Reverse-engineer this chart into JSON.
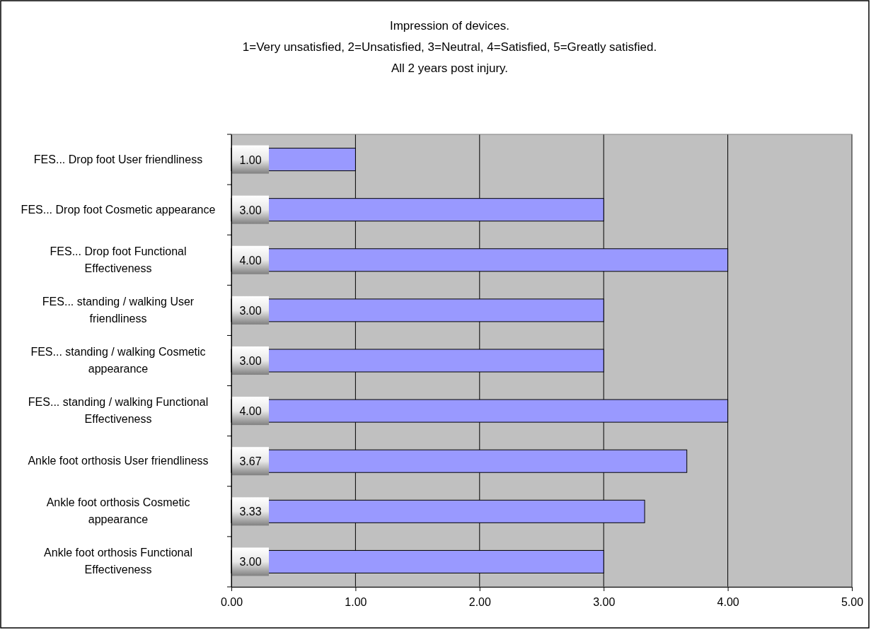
{
  "chart_data": {
    "type": "bar",
    "orientation": "horizontal",
    "title": "Impression of devices.",
    "subtitle": "1=Very unsatisfied, 2=Unsatisfied, 3=Neutral, 4=Satisfied, 5=Greatly satisfied.\nAll 2 years post injury.",
    "categories": [
      "FES... Drop foot User friendliness",
      "FES... Drop foot Cosmetic appearance",
      "FES... Drop foot Functional Effectiveness",
      "FES... standing / walking User friendliness",
      "FES... standing / walking Cosmetic appearance",
      "FES... standing / walking Functional Effectiveness",
      "Ankle foot orthosis User friendliness",
      "Ankle foot orthosis Cosmetic appearance",
      "Ankle foot orthosis Functional Effectiveness"
    ],
    "values": [
      1.0,
      3.0,
      4.0,
      3.0,
      3.0,
      4.0,
      3.67,
      3.33,
      3.0
    ],
    "value_labels": [
      "1.00",
      "3.00",
      "4.00",
      "3.00",
      "3.00",
      "4.00",
      "3.67",
      "3.33",
      "3.00"
    ],
    "color": "#9999ff",
    "xlim": [
      0,
      5
    ],
    "xticks": [
      {
        "value": 0,
        "label": "0.00"
      },
      {
        "value": 1,
        "label": "1.00"
      },
      {
        "value": 2,
        "label": "2.00"
      },
      {
        "value": 3,
        "label": "3.00"
      },
      {
        "value": 4,
        "label": "4.00"
      },
      {
        "value": 5,
        "label": "5.00"
      }
    ],
    "grid": "x"
  }
}
